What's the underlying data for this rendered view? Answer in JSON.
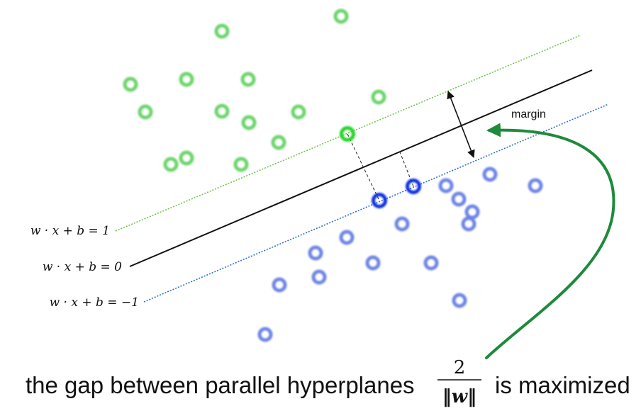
{
  "labels": {
    "margin": "margin",
    "eq_plus": "w · x + b = 1",
    "eq_zero": "w · x + b = 0",
    "eq_minus": "w · x + b = −1",
    "caption_left": "the gap between parallel hyperplanes",
    "frac_num": "2",
    "frac_den": "‖w‖",
    "caption_right": "is maximized"
  },
  "colors": {
    "green_point": "#6ad46a",
    "green_sv": "#22d422",
    "blue_point": "#6d84e6",
    "blue_sv": "#0a2fe0",
    "green_line": "#6cc44a",
    "blue_line": "#2a6ed8",
    "arrow_green": "#1e8a3c"
  }
}
